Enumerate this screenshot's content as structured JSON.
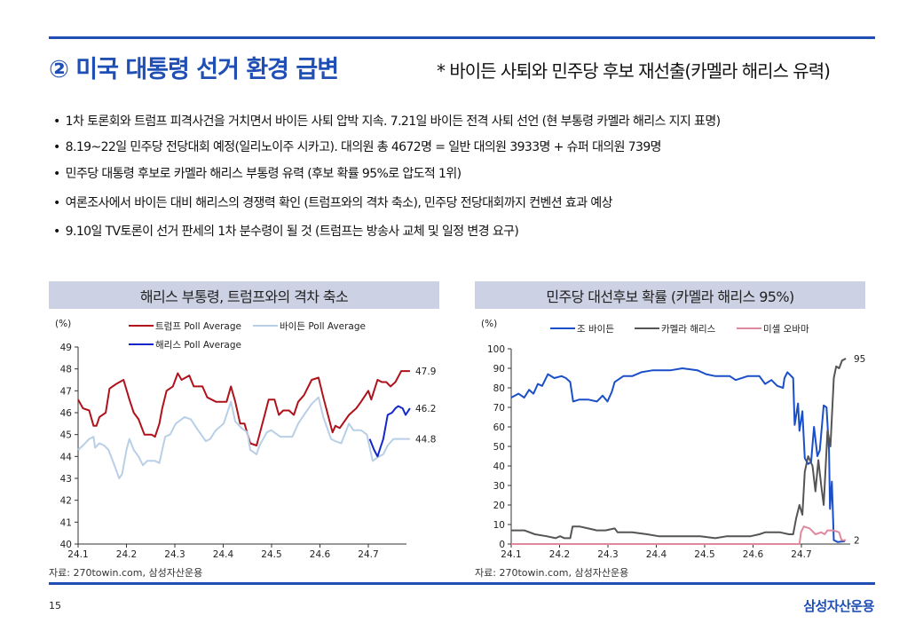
{
  "header": {
    "title": "② 미국 대통령 선거 환경 급변",
    "subtitle": "* 바이든 사퇴와 민주당 후보 재선출(카멜라 해리스 유력)"
  },
  "bullets": [
    "1차 토론회와 트럼프 피격사건을 거치면서 바이든 사퇴 압박 지속. 7.21일 바이든 전격 사퇴 선언 (현 부통령 카멜라 해리스 지지 표명)",
    "8.19~22일 민주당 전당대회 예정(일리노이주 시카고). 대의원 총 4672명 = 일반 대의원 3933명 + 슈퍼 대의원 739명",
    "민주당 대통령 후보로 카멜라 해리스 부통령 유력 (후보 확률 95%로 압도적 1위)",
    "여론조사에서 바이든 대비 해리스의 경쟁력 확인 (트럼프와의 격차 축소), 민주당 전당대회까지 컨벤션 효과 예상",
    "9.10일 TV토론이 선거 판세의 1차 분수령이 될 것 (트럼프는 방송사 교체 및 일정 변경 요구)"
  ],
  "footer": {
    "page": "15",
    "logo": "삼성자산운용"
  },
  "chart_data": [
    {
      "type": "line",
      "title": "해리스 부통령, 트럼프와의 격차 축소",
      "ylabel": "(%)",
      "ylim": [
        40,
        49
      ],
      "yticks": [
        "40",
        "41",
        "42",
        "43",
        "44",
        "45",
        "46",
        "47",
        "48",
        "49"
      ],
      "xticks": [
        "24.1",
        "24.2",
        "24.3",
        "24.4",
        "24.5",
        "24.6",
        "24.7"
      ],
      "x_unit": "month index (1 = 24.1)",
      "source": "자료: 270towin.com, 삼성자산운용",
      "series": [
        {
          "name": "트럼프 Poll Average",
          "color": "#b0121b",
          "end_label": "47.9",
          "points": [
            [
              1.0,
              46.6
            ],
            [
              1.1,
              46.2
            ],
            [
              1.23,
              46.1
            ],
            [
              1.32,
              45.4
            ],
            [
              1.38,
              45.4
            ],
            [
              1.44,
              45.8
            ],
            [
              1.57,
              46
            ],
            [
              1.65,
              47.1
            ],
            [
              1.78,
              47.3
            ],
            [
              1.94,
              47.5
            ],
            [
              2.06,
              46.6
            ],
            [
              2.15,
              46
            ],
            [
              2.25,
              45.7
            ],
            [
              2.37,
              45
            ],
            [
              2.52,
              45
            ],
            [
              2.59,
              44.9
            ],
            [
              2.68,
              45.5
            ],
            [
              2.74,
              46.2
            ],
            [
              2.83,
              47
            ],
            [
              2.96,
              47.2
            ],
            [
              3.06,
              47.8
            ],
            [
              3.14,
              47.5
            ],
            [
              3.3,
              47.7
            ],
            [
              3.39,
              47.2
            ],
            [
              3.57,
              47.2
            ],
            [
              3.67,
              46.7
            ],
            [
              3.85,
              46.5
            ],
            [
              4.07,
              46.5
            ],
            [
              4.16,
              47.2
            ],
            [
              4.25,
              46.5
            ],
            [
              4.35,
              45.5
            ],
            [
              4.44,
              45.5
            ],
            [
              4.56,
              44.6
            ],
            [
              4.69,
              44.5
            ],
            [
              4.87,
              46
            ],
            [
              4.94,
              46.6
            ],
            [
              5.06,
              46.6
            ],
            [
              5.15,
              45.9
            ],
            [
              5.24,
              46.1
            ],
            [
              5.36,
              46.1
            ],
            [
              5.46,
              45.9
            ],
            [
              5.55,
              46.5
            ],
            [
              5.67,
              46.8
            ],
            [
              5.83,
              47.5
            ],
            [
              5.97,
              47.6
            ],
            [
              6.07,
              46.7
            ],
            [
              6.26,
              45.1
            ],
            [
              6.32,
              45.4
            ],
            [
              6.41,
              45.3
            ],
            [
              6.6,
              45.9
            ],
            [
              6.75,
              46.2
            ],
            [
              6.85,
              46.5
            ],
            [
              7.0,
              47
            ],
            [
              7.06,
              46.6
            ],
            [
              7.19,
              47.5
            ],
            [
              7.28,
              47.4
            ],
            [
              7.37,
              47.4
            ],
            [
              7.46,
              47.2
            ],
            [
              7.56,
              47.4
            ],
            [
              7.68,
              47.9
            ],
            [
              7.86,
              47.9
            ]
          ]
        },
        {
          "name": "바이든 Poll Average",
          "color": "#b8cfe6",
          "end_label": "44.8",
          "points": [
            [
              1.0,
              44.3
            ],
            [
              1.1,
              44.5
            ],
            [
              1.23,
              44.8
            ],
            [
              1.32,
              44.9
            ],
            [
              1.35,
              44.4
            ],
            [
              1.44,
              44.6
            ],
            [
              1.54,
              44.5
            ],
            [
              1.63,
              44.3
            ],
            [
              1.75,
              43.6
            ],
            [
              1.85,
              43
            ],
            [
              1.91,
              43.2
            ],
            [
              2.0,
              44.3
            ],
            [
              2.06,
              44.8
            ],
            [
              2.15,
              44.3
            ],
            [
              2.25,
              44
            ],
            [
              2.34,
              43.6
            ],
            [
              2.43,
              43.8
            ],
            [
              2.59,
              43.8
            ],
            [
              2.68,
              43.7
            ],
            [
              2.74,
              44.3
            ],
            [
              2.8,
              44.9
            ],
            [
              2.9,
              45
            ],
            [
              3.02,
              45.5
            ],
            [
              3.2,
              45.8
            ],
            [
              3.33,
              45.7
            ],
            [
              3.45,
              45.3
            ],
            [
              3.64,
              44.7
            ],
            [
              3.73,
              44.8
            ],
            [
              3.85,
              45.2
            ],
            [
              4.01,
              45.5
            ],
            [
              4.16,
              46.5
            ],
            [
              4.25,
              45.6
            ],
            [
              4.38,
              45.3
            ],
            [
              4.5,
              45.1
            ],
            [
              4.56,
              44.3
            ],
            [
              4.69,
              44.1
            ],
            [
              4.75,
              44.5
            ],
            [
              4.9,
              45.1
            ],
            [
              4.99,
              45.2
            ],
            [
              5.18,
              44.9
            ],
            [
              5.43,
              44.9
            ],
            [
              5.55,
              45.5
            ],
            [
              5.67,
              45.9
            ],
            [
              5.83,
              46.4
            ],
            [
              5.97,
              46.7
            ],
            [
              6.07,
              45.8
            ],
            [
              6.23,
              44.8
            ],
            [
              6.32,
              44.7
            ],
            [
              6.44,
              44.6
            ],
            [
              6.6,
              45.5
            ],
            [
              6.69,
              45.2
            ],
            [
              6.85,
              45.2
            ],
            [
              6.97,
              45
            ],
            [
              7.09,
              43.8
            ],
            [
              7.22,
              44
            ],
            [
              7.31,
              44.1
            ],
            [
              7.4,
              44.5
            ],
            [
              7.52,
              44.8
            ],
            [
              7.68,
              44.8
            ],
            [
              7.86,
              44.8
            ]
          ]
        },
        {
          "name": "해리스 Poll Average",
          "color": "#1327c8",
          "end_label": "46.2",
          "points": [
            [
              7.03,
              44.8
            ],
            [
              7.12,
              44.3
            ],
            [
              7.19,
              44
            ],
            [
              7.25,
              44.4
            ],
            [
              7.31,
              44.8
            ],
            [
              7.4,
              45.9
            ],
            [
              7.49,
              46
            ],
            [
              7.56,
              46.2
            ],
            [
              7.62,
              46.3
            ],
            [
              7.71,
              46.2
            ],
            [
              7.77,
              45.9
            ],
            [
              7.86,
              46.2
            ]
          ]
        }
      ]
    },
    {
      "type": "line",
      "title": "민주당 대선후보 확률 (카멜라 해리스 95%)",
      "ylabel": "(%)",
      "ylim": [
        0,
        100
      ],
      "yticks": [
        "0",
        "10",
        "20",
        "30",
        "40",
        "50",
        "60",
        "70",
        "80",
        "90",
        "100"
      ],
      "xticks": [
        "24.1",
        "24.2",
        "24.3",
        "24.4",
        "24.5",
        "24.6",
        "24.7"
      ],
      "x_unit": "month index (1 = 24.1)",
      "source": "자료: 270towin.com, 삼성자산운용",
      "series": [
        {
          "name": "조 바이든",
          "color": "#1a4fc8",
          "end_label": "",
          "points": [
            [
              1.0,
              75
            ],
            [
              1.15,
              77
            ],
            [
              1.27,
              75
            ],
            [
              1.37,
              79
            ],
            [
              1.46,
              77
            ],
            [
              1.55,
              82
            ],
            [
              1.64,
              81
            ],
            [
              1.76,
              87
            ],
            [
              1.89,
              85
            ],
            [
              2.04,
              86
            ],
            [
              2.13,
              85
            ],
            [
              2.22,
              83
            ],
            [
              2.28,
              73
            ],
            [
              2.41,
              74
            ],
            [
              2.59,
              74
            ],
            [
              2.77,
              73
            ],
            [
              2.89,
              76
            ],
            [
              2.99,
              73
            ],
            [
              3.08,
              78
            ],
            [
              3.14,
              83
            ],
            [
              3.32,
              86
            ],
            [
              3.5,
              86
            ],
            [
              3.69,
              88
            ],
            [
              3.93,
              89
            ],
            [
              4.3,
              89
            ],
            [
              4.54,
              90
            ],
            [
              4.85,
              89
            ],
            [
              5.03,
              87
            ],
            [
              5.22,
              86
            ],
            [
              5.52,
              86
            ],
            [
              5.64,
              84
            ],
            [
              5.89,
              86
            ],
            [
              6.13,
              86
            ],
            [
              6.25,
              82
            ],
            [
              6.38,
              84
            ],
            [
              6.5,
              81
            ],
            [
              6.62,
              80
            ],
            [
              6.65,
              85
            ],
            [
              6.71,
              88
            ],
            [
              6.83,
              85
            ],
            [
              6.86,
              61
            ],
            [
              6.93,
              72
            ],
            [
              6.96,
              58
            ],
            [
              7.02,
              68
            ],
            [
              7.07,
              44
            ],
            [
              7.14,
              41
            ],
            [
              7.2,
              42
            ],
            [
              7.26,
              60
            ],
            [
              7.33,
              45
            ],
            [
              7.38,
              48
            ],
            [
              7.46,
              71
            ],
            [
              7.52,
              70
            ],
            [
              7.57,
              48
            ],
            [
              7.59,
              18
            ],
            [
              7.63,
              32
            ],
            [
              7.67,
              2
            ],
            [
              7.75,
              1
            ],
            [
              7.9,
              1.5
            ]
          ]
        },
        {
          "name": "카멜라 해리스",
          "color": "#555555",
          "end_label": "95",
          "points": [
            [
              1.0,
              7
            ],
            [
              1.27,
              7
            ],
            [
              1.49,
              5
            ],
            [
              1.73,
              4
            ],
            [
              1.92,
              3
            ],
            [
              2.01,
              4
            ],
            [
              2.1,
              3
            ],
            [
              2.22,
              3
            ],
            [
              2.27,
              9
            ],
            [
              2.41,
              9
            ],
            [
              2.59,
              8
            ],
            [
              2.77,
              7
            ],
            [
              2.95,
              7
            ],
            [
              3.14,
              8
            ],
            [
              3.2,
              6
            ],
            [
              3.5,
              6
            ],
            [
              3.81,
              5
            ],
            [
              4.05,
              4
            ],
            [
              4.42,
              4
            ],
            [
              4.91,
              4
            ],
            [
              5.22,
              3
            ],
            [
              5.46,
              4
            ],
            [
              5.95,
              4
            ],
            [
              6.13,
              5
            ],
            [
              6.25,
              6
            ],
            [
              6.56,
              6
            ],
            [
              6.74,
              5
            ],
            [
              6.83,
              5
            ],
            [
              6.89,
              13
            ],
            [
              6.96,
              20
            ],
            [
              7.02,
              15
            ],
            [
              7.07,
              37
            ],
            [
              7.14,
              45
            ],
            [
              7.23,
              40
            ],
            [
              7.29,
              27
            ],
            [
              7.35,
              43
            ],
            [
              7.41,
              30
            ],
            [
              7.46,
              20
            ],
            [
              7.54,
              58
            ],
            [
              7.6,
              50
            ],
            [
              7.67,
              85
            ],
            [
              7.72,
              91
            ],
            [
              7.78,
              90
            ],
            [
              7.84,
              94
            ],
            [
              7.92,
              95
            ]
          ]
        },
        {
          "name": "미셸 오바마",
          "color": "#e0899e",
          "end_label": "2",
          "points": [
            [
              1.0,
              0
            ],
            [
              6.96,
              0
            ],
            [
              6.99,
              6
            ],
            [
              7.05,
              9
            ],
            [
              7.17,
              8
            ],
            [
              7.29,
              5
            ],
            [
              7.41,
              6
            ],
            [
              7.48,
              5
            ],
            [
              7.54,
              7
            ],
            [
              7.66,
              7
            ],
            [
              7.78,
              6
            ],
            [
              7.83,
              2
            ],
            [
              7.92,
              2
            ]
          ]
        }
      ]
    }
  ]
}
